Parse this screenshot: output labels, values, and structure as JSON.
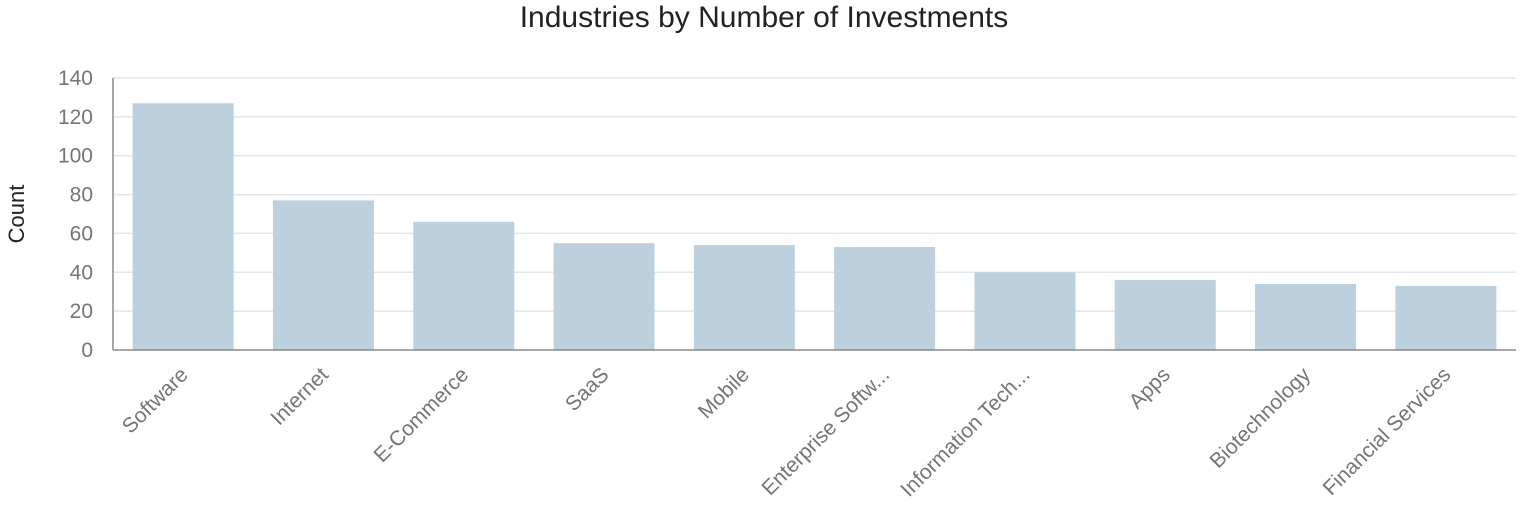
{
  "chart_data": {
    "type": "bar",
    "title": "Industries by Number of Investments",
    "xlabel": "",
    "ylabel": "Count",
    "categories": [
      "Software",
      "Internet",
      "E-Commerce",
      "SaaS",
      "Mobile",
      "Enterprise Softw...",
      "Information Tech...",
      "Apps",
      "Biotechnology",
      "Financial Services"
    ],
    "values": [
      127,
      77,
      66,
      55,
      54,
      53,
      40,
      36,
      34,
      33
    ],
    "ylim": [
      0,
      140
    ],
    "yticks": [
      0,
      20,
      40,
      60,
      80,
      100,
      120,
      140
    ],
    "grid": true,
    "bar_color": "#bdd0dd"
  }
}
